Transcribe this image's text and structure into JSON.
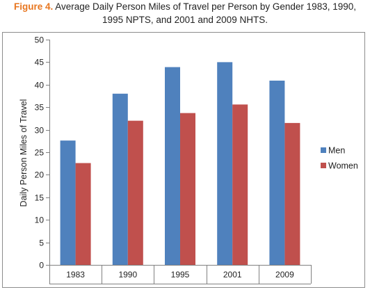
{
  "caption": {
    "figure_label": "Figure 4.",
    "line1_rest": " Average Daily Person Miles of Travel per Person by Gender 1983, 1990,",
    "line2": "1995 NPTS, and 2001 and 2009 NHTS."
  },
  "colors": {
    "figure_label": "#e8761f",
    "men": "#4f81bd",
    "women": "#c0504d",
    "frame": "#8c8c8c",
    "axis": "#808080"
  },
  "chart_data": {
    "type": "bar",
    "title": "Figure 4. Average Daily Person Miles of Travel per Person by Gender 1983, 1990, 1995 NPTS, and 2001 and 2009 NHTS.",
    "xlabel": "",
    "ylabel": "Daily Person Miles of Travel",
    "categories": [
      "1983",
      "1990",
      "1995",
      "2001",
      "2009"
    ],
    "series": [
      {
        "name": "Men",
        "values": [
          27.6,
          38.0,
          43.9,
          45.0,
          40.9
        ]
      },
      {
        "name": "Women",
        "values": [
          22.6,
          32.0,
          33.7,
          35.6,
          31.5
        ]
      }
    ],
    "ylim": [
      0,
      50
    ],
    "yticks": [
      "0",
      "5",
      "10",
      "15",
      "20",
      "25",
      "30",
      "35",
      "40",
      "45",
      "50"
    ],
    "grid": false,
    "legend_position": "right"
  }
}
